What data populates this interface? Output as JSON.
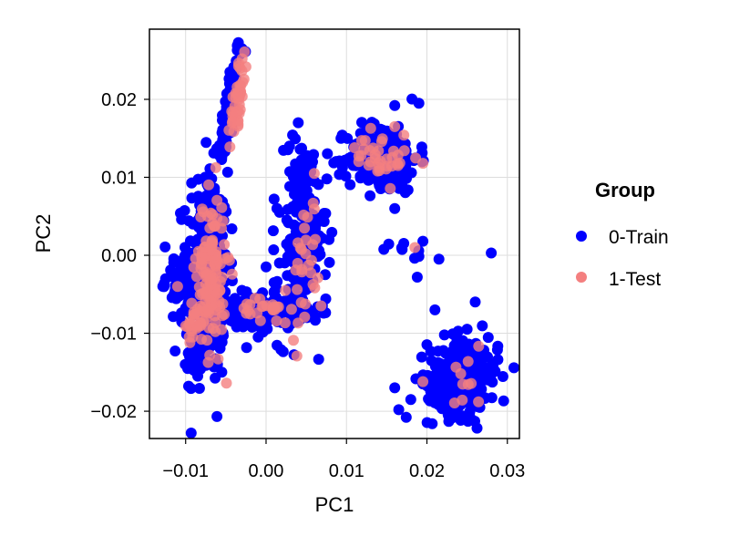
{
  "chart_data": {
    "type": "scatter",
    "xlabel": "PC1",
    "ylabel": "PC2",
    "xlim": [
      -0.0145,
      0.0315
    ],
    "ylim": [
      -0.0235,
      0.029
    ],
    "x_ticks": [
      -0.01,
      0.0,
      0.01,
      0.02,
      0.03
    ],
    "x_tick_labels": [
      "−0.01",
      "0.00",
      "0.01",
      "0.02",
      "0.03"
    ],
    "y_ticks": [
      -0.02,
      -0.01,
      0.0,
      0.01,
      0.02
    ],
    "y_tick_labels": [
      "−0.02",
      "−0.01",
      "0.00",
      "0.01",
      "0.02"
    ],
    "grid": true,
    "legend": {
      "title": "Group",
      "placement": "right",
      "entries": [
        {
          "label": "0-Train",
          "color": "#0000ff"
        },
        {
          "label": "1-Test",
          "color": "#f47f7f"
        }
      ]
    },
    "series": [
      {
        "name": "0-Train",
        "color": "#0000ff",
        "clusters": [
          {
            "cx": -0.0045,
            "cy": 0.019,
            "sx": 0.0007,
            "sy": 0.004,
            "n": 70,
            "rho": 0.8
          },
          {
            "cx": -0.0073,
            "cy": -0.002,
            "sx": 0.0013,
            "sy": 0.0065,
            "n": 320,
            "rho": 0
          },
          {
            "cx": -0.0108,
            "cy": -0.0032,
            "sx": 0.0009,
            "sy": 0.002,
            "n": 40,
            "rho": 0
          },
          {
            "cx": -0.0085,
            "cy": -0.0105,
            "sx": 0.0012,
            "sy": 0.0025,
            "n": 60,
            "rho": 0
          },
          {
            "cx": -0.001,
            "cy": -0.0072,
            "sx": 0.0028,
            "sy": 0.0012,
            "n": 150,
            "rho": 0
          },
          {
            "cx": 0.0045,
            "cy": 0.0,
            "sx": 0.0015,
            "sy": 0.005,
            "n": 180,
            "rho": 0.2
          },
          {
            "cx": 0.0042,
            "cy": 0.011,
            "sx": 0.0008,
            "sy": 0.0025,
            "n": 40,
            "rho": 0
          },
          {
            "cx": 0.0145,
            "cy": 0.0125,
            "sx": 0.0022,
            "sy": 0.0022,
            "n": 230,
            "rho": 0
          },
          {
            "cx": 0.017,
            "cy": 0.0002,
            "sx": 0.0015,
            "sy": 0.0008,
            "n": 8,
            "rho": 0
          },
          {
            "cx": 0.0245,
            "cy": -0.0155,
            "sx": 0.0022,
            "sy": 0.0025,
            "n": 260,
            "rho": 0
          }
        ],
        "points": [
          [
            -0.003,
            0.0265
          ],
          [
            -0.0032,
            0.0258
          ],
          [
            -0.0045,
            0.0235
          ],
          [
            0.004,
            0.017
          ],
          [
            0.016,
            0.0192
          ],
          [
            0.019,
            0.0195
          ],
          [
            0.021,
            -0.007
          ],
          [
            0.026,
            -0.006
          ],
          [
            0.028,
            0.0003
          ],
          [
            0.0215,
            -0.0005
          ],
          [
            0.0188,
            -0.0028
          ],
          [
            0.0195,
            0.0018
          ],
          [
            0.016,
            -0.017
          ],
          [
            0.0165,
            -0.0198
          ],
          [
            0.018,
            -0.0185
          ],
          [
            0.0195,
            -0.0165
          ],
          [
            -0.003,
            -0.0045
          ],
          [
            0.001,
            -0.0035
          ],
          [
            0.0,
            -0.0015
          ],
          [
            -0.0085,
            -0.0155
          ],
          [
            -0.0055,
            -0.015
          ],
          [
            0.0112,
            0.0115
          ],
          [
            0.0098,
            0.0122
          ],
          [
            0.016,
            0.006
          ],
          [
            0.007,
            -0.0065
          ],
          [
            -0.01,
            0.0
          ],
          [
            -0.0125,
            -0.003
          ],
          [
            0.001,
            0.0072
          ]
        ]
      },
      {
        "name": "1-Test",
        "color": "#f47f7f",
        "clusters": [
          {
            "cx": -0.0035,
            "cy": 0.02,
            "sx": 0.0005,
            "sy": 0.0028,
            "n": 45,
            "rho": 0.8
          },
          {
            "cx": -0.0068,
            "cy": -0.002,
            "sx": 0.0009,
            "sy": 0.005,
            "n": 130,
            "rho": 0
          },
          {
            "cx": -0.0085,
            "cy": -0.0085,
            "sx": 0.001,
            "sy": 0.0015,
            "n": 30,
            "rho": 0
          },
          {
            "cx": 0.0,
            "cy": -0.007,
            "sx": 0.0016,
            "sy": 0.001,
            "n": 25,
            "rho": 0
          },
          {
            "cx": 0.005,
            "cy": -0.001,
            "sx": 0.001,
            "sy": 0.0045,
            "n": 30,
            "rho": 0
          },
          {
            "cx": 0.0145,
            "cy": 0.0125,
            "sx": 0.0016,
            "sy": 0.0016,
            "n": 35,
            "rho": 0
          },
          {
            "cx": 0.0245,
            "cy": -0.015,
            "sx": 0.0015,
            "sy": 0.002,
            "n": 10,
            "rho": 0
          }
        ],
        "points": [
          [
            0.011,
            0.0138
          ],
          [
            0.016,
            0.0165
          ],
          [
            0.0195,
            0.0118
          ],
          [
            0.0185,
            0.001
          ],
          [
            0.0195,
            -0.0162
          ],
          [
            -0.0045,
            0.0139
          ],
          [
            0.006,
            0.0105
          ],
          [
            -0.011,
            -0.004
          ]
        ]
      }
    ]
  }
}
